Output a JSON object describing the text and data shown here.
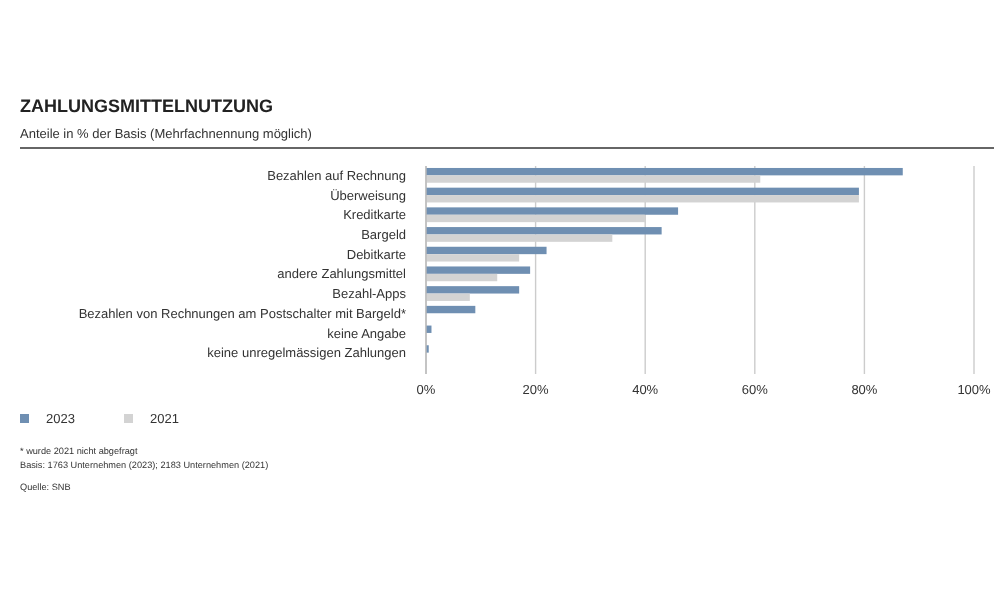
{
  "chart_data": {
    "type": "bar",
    "orientation": "horizontal",
    "title": "ZAHLUNGSMITTELNUTZUNG",
    "subtitle": "Anteile in % der Basis (Mehrfachnennung möglich)",
    "categories": [
      "Bezahlen auf Rechnung",
      "Überweisung",
      "Kreditkarte",
      "Bargeld",
      "Debitkarte",
      "andere Zahlungsmittel",
      "Bezahl-Apps",
      "Bezahlen von Rechnungen am Postschalter mit Bargeld*",
      "keine Angabe",
      "keine unregelmässigen Zahlungen"
    ],
    "series": [
      {
        "name": "2023",
        "color": "#6f8fb2",
        "values": [
          87,
          79,
          46,
          43,
          22,
          19,
          17,
          9,
          1,
          0.5
        ]
      },
      {
        "name": "2021",
        "color": "#d3d3d3",
        "values": [
          61,
          79,
          40,
          34,
          17,
          13,
          8,
          null,
          null,
          null
        ]
      }
    ],
    "xlim": [
      0,
      100
    ],
    "xticks": [
      {
        "value": 0,
        "label": "0%"
      },
      {
        "value": 20,
        "label": "20%"
      },
      {
        "value": 40,
        "label": "40%"
      },
      {
        "value": 60,
        "label": "60%"
      },
      {
        "value": 80,
        "label": "80%"
      },
      {
        "value": 100,
        "label": "100%"
      }
    ],
    "grid": "x",
    "legend": "bottom",
    "annotations": [
      "* wurde 2021 nicht abgefragt",
      "Basis: 1763 Unternehmen (2023); 2183 Unternehmen (2021)",
      "Quelle: SNB"
    ]
  }
}
